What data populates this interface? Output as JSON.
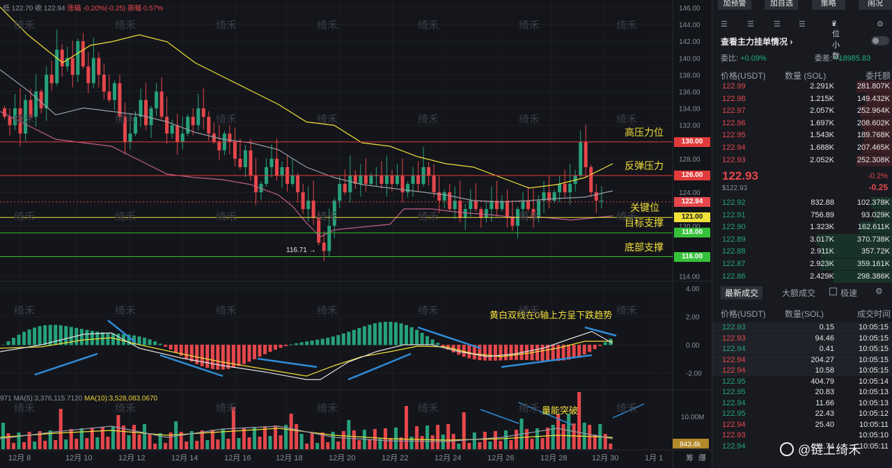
{
  "top_info": {
    "low": "低 122.70",
    "close": "收 122.94",
    "change": "涨幅 -0.20%(-0.25)",
    "amplitude": "振幅 0.57%"
  },
  "ma_info": {
    "prefix": "971",
    "ma5": "MA(5):3,376,115.7120",
    "ma10": "MA(10):3,528,083.0670"
  },
  "price_axis": [
    "146.00",
    "144.00",
    "142.00",
    "140.00",
    "138.00",
    "136.00",
    "134.00",
    "132.00",
    "128.00",
    "124.00",
    "120.00",
    "114.00"
  ],
  "macd_axis": [
    "4.00",
    "2.00",
    "0.00",
    "-2.00"
  ],
  "volume_axis": {
    "level": "10.00M",
    "current": "843.4k"
  },
  "date_axis": [
    "12月 8",
    "12月 10",
    "12月 12",
    "12月 14",
    "12月 16",
    "12月 18",
    "12月 20",
    "12月 22",
    "12月 24",
    "12月 26",
    "12月 28",
    "12月 30",
    "1月 1"
  ],
  "axis_corner": [
    "筹",
    "爆"
  ],
  "levels": [
    {
      "value": "130.00",
      "price": 130,
      "color": "#e23b3b",
      "text": "#ffffff",
      "annotation": "高压力位"
    },
    {
      "value": "126.00",
      "price": 126,
      "color": "#e23b3b",
      "text": "#ffffff",
      "annotation": "反弹压力"
    },
    {
      "value": "121.00",
      "price": 121,
      "color": "#f1e13a",
      "text": "#1a1a1a",
      "annotation": "关键位"
    },
    {
      "value": "118.00",
      "price": 118,
      "color": "#35c23a",
      "text": "#ffffff",
      "annotation": "目标支撑"
    },
    {
      "value": "116.00",
      "price": 116,
      "color": "#35c23a",
      "text": "#ffffff",
      "annotation": "底部支撑"
    }
  ],
  "current_price_label": "122.94",
  "low_marker": "116.71",
  "annotation_macd": "黄白双线在0轴上方呈下跌趋势",
  "annotation_volume": "量能突破",
  "watermark": "绮禾",
  "logo_text": "@链上绮禾",
  "colors": {
    "up": "#26a17b",
    "down": "#e5474b",
    "yellow": "#f1e13a",
    "pink": "#c0608a",
    "grey": "#9a9ea8"
  },
  "panel": {
    "buttons": [
      "加预警",
      "加自选",
      "策略",
      "闹况"
    ],
    "decimals": "2位小数",
    "title": "查看主力挂单情况",
    "ratio_label": "委比:",
    "ratio_value": "+0.09%",
    "diff_label": "委差:",
    "diff_value": "+18985.83",
    "book_headers": [
      "价格(USDT)",
      "数量 (SOL)",
      "委托额"
    ],
    "asks": [
      {
        "price": "122.99",
        "qty": "2.291K",
        "total": "281.807K",
        "fill": 0.2
      },
      {
        "price": "122.98",
        "qty": "1.215K",
        "total": "149.432K",
        "fill": 0.15
      },
      {
        "price": "122.97",
        "qty": "2.057K",
        "total": "252.964K",
        "fill": 0.18
      },
      {
        "price": "122.96",
        "qty": "1.697K",
        "total": "208.602K",
        "fill": 0.17
      },
      {
        "price": "122.95",
        "qty": "1.543K",
        "total": "189.768K",
        "fill": 0.16
      },
      {
        "price": "122.94",
        "qty": "1.688K",
        "total": "207.465K",
        "fill": 0.17
      },
      {
        "price": "122.93",
        "qty": "2.052K",
        "total": "252.308K",
        "fill": 0.2
      }
    ],
    "last_price": "122.93",
    "last_price_sub": "$122.93",
    "change_pct": "-0.2%",
    "change_abs": "-0.25",
    "bids": [
      {
        "price": "122.92",
        "qty": "832.88",
        "total": "102.378K",
        "fill": 0.12
      },
      {
        "price": "122.91",
        "qty": "756.89",
        "total": "93.029K",
        "fill": 0.1
      },
      {
        "price": "122.90",
        "qty": "1.323K",
        "total": "162.611K",
        "fill": 0.18
      },
      {
        "price": "122.89",
        "qty": "3.017K",
        "total": "370.738K",
        "fill": 0.42
      },
      {
        "price": "122.88",
        "qty": "2.911K",
        "total": "357.72K",
        "fill": 0.4
      },
      {
        "price": "122.87",
        "qty": "2.923K",
        "total": "359.161K",
        "fill": 0.4
      },
      {
        "price": "122.86",
        "qty": "2.429K",
        "total": "298.386K",
        "fill": 0.33
      }
    ],
    "trade_tab_active": "最新成交",
    "trade_tab_other": "大额成交",
    "fast_label": "极速",
    "trade_headers": [
      "价格(USDT)",
      "数量(SOL)",
      "成交时间"
    ],
    "trades": [
      {
        "price": "122.93",
        "side": "up",
        "qty": "0.15",
        "time": "10:05:15"
      },
      {
        "price": "122.93",
        "side": "down",
        "qty": "94.46",
        "time": "10:05:15"
      },
      {
        "price": "122.94",
        "side": "up",
        "qty": "0.41",
        "time": "10:05:15"
      },
      {
        "price": "122.94",
        "side": "down",
        "qty": "204.27",
        "time": "10:05:15"
      },
      {
        "price": "122.94",
        "side": "down",
        "qty": "10.58",
        "time": "10:05:15"
      },
      {
        "price": "122.95",
        "side": "up",
        "qty": "404.79",
        "time": "10:05:14"
      },
      {
        "price": "122.95",
        "side": "up",
        "qty": "20.83",
        "time": "10:05:13"
      },
      {
        "price": "122.94",
        "side": "up",
        "qty": "11.66",
        "time": "10:05:13"
      },
      {
        "price": "122.95",
        "side": "up",
        "qty": "22.43",
        "time": "10:05:12"
      },
      {
        "price": "122.94",
        "side": "down",
        "qty": "25.40",
        "time": "10:05:11"
      },
      {
        "price": "122.93",
        "side": "down",
        "qty": "",
        "time": "10:05:10"
      },
      {
        "price": "122.94",
        "side": "up",
        "qty": "611.74",
        "time": "10:05:11"
      }
    ]
  }
}
